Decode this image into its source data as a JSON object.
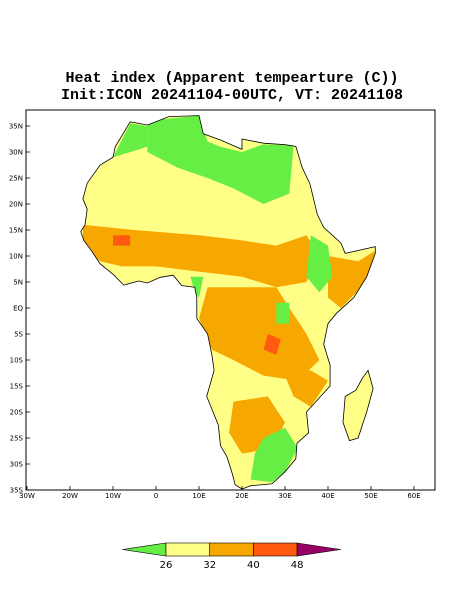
{
  "title": "Heat index (Apparent tempearture (C))",
  "subtitle": "Init:ICON 20241104-00UTC, VT: 20241108",
  "map": {
    "longitude_labels": [
      "30W",
      "20W",
      "10W",
      "0",
      "10E",
      "20E",
      "30E",
      "40E",
      "50E",
      "60E"
    ],
    "latitude_labels": [
      "35N",
      "30N",
      "25N",
      "20N",
      "15N",
      "10N",
      "5N",
      "EQ",
      "5S",
      "10S",
      "15S",
      "20S",
      "25S",
      "30S",
      "35S"
    ]
  },
  "legend": {
    "ticks": [
      26,
      32,
      40,
      48
    ],
    "colors": [
      "#66ee44",
      "#ffff88",
      "#f7a800",
      "#ff5a10",
      "#990066"
    ]
  }
}
